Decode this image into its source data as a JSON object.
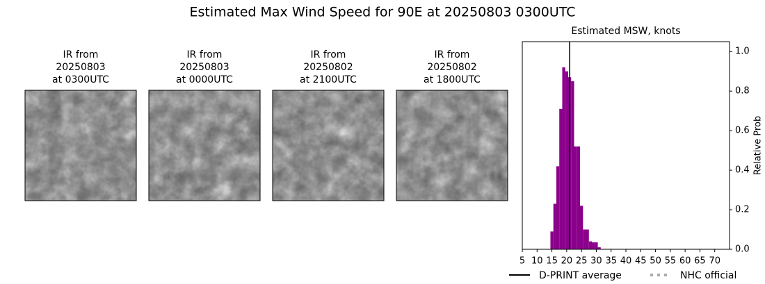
{
  "title": "Estimated Max Wind Speed for 90E at 20250803 0300UTC",
  "panels": [
    {
      "title_lines": [
        "IR from",
        "20250803",
        "at 0300UTC"
      ]
    },
    {
      "title_lines": [
        "IR from",
        "20250803",
        "at 0000UTC"
      ]
    },
    {
      "title_lines": [
        "IR from",
        "20250802",
        "at 2100UTC"
      ]
    },
    {
      "title_lines": [
        "IR from",
        "20250802",
        "at 1800UTC"
      ]
    }
  ],
  "chart_data": {
    "type": "histogram",
    "title": "Estimated MSW, knots",
    "ylabel": "Relative Prob",
    "color": "#8b008b",
    "bins": [
      14.5,
      15.5,
      16.5,
      17.5,
      18.5,
      19.5,
      20.5,
      21.5,
      22.5,
      23.5,
      24.5,
      25.5,
      26.5,
      27.5,
      28.5,
      29.5,
      30.5,
      31.5,
      32.5,
      33.5,
      34.5,
      35.5,
      36.5,
      37.5,
      38.5,
      39.5,
      40.5,
      41.5,
      42.5,
      43.5,
      44.5,
      45.5,
      46.5,
      47.5,
      48.5,
      49.5,
      50.5,
      51.5,
      52.5,
      53.5,
      54.5,
      55.5,
      56.5,
      57.5,
      58.5,
      59.5,
      60.5,
      61.5,
      62.5,
      63.5,
      64.5,
      65.5,
      66.5,
      67.5,
      68.5,
      69.5,
      70.5
    ],
    "counts": [
      0.09,
      0.23,
      0.42,
      0.71,
      0.92,
      0.9,
      0.87,
      0.85,
      0.52,
      0.52,
      0.22,
      0.1,
      0.1,
      0.04,
      0.035,
      0.035,
      0.01,
      0.002,
      0.002,
      0.002,
      0.002,
      0.002,
      0.002,
      0.002,
      0.002,
      0.002,
      0.002,
      0.002,
      0.002,
      0.002,
      0.002,
      0.002,
      0.002,
      0.002,
      0.002,
      0.002,
      0.002,
      0.002,
      0.002,
      0.002,
      0.002,
      0.002,
      0.002,
      0.002,
      0.002,
      0.002,
      0.002,
      0.002,
      0.002,
      0.002,
      0.002,
      0.002,
      0.002,
      0.002,
      0.002,
      0.002
    ],
    "series": [
      {
        "name": "D-PRINT average",
        "color": "#000000",
        "linestyle": "solid",
        "x": 21
      },
      {
        "name": "NHC official",
        "color": "#aaaaaa",
        "linestyle": "dotted"
      }
    ],
    "xlim": [
      5,
      75
    ],
    "xticks": [
      5,
      10,
      15,
      20,
      25,
      30,
      35,
      40,
      45,
      50,
      55,
      60,
      65,
      70
    ],
    "ylim": [
      0,
      1.05
    ],
    "yticks": [
      {
        "value": 0,
        "label": "0.0"
      },
      0.2,
      0.4,
      0.6,
      0.8,
      {
        "value": 1,
        "label": "1.0"
      }
    ],
    "legend_position": "lower center"
  }
}
